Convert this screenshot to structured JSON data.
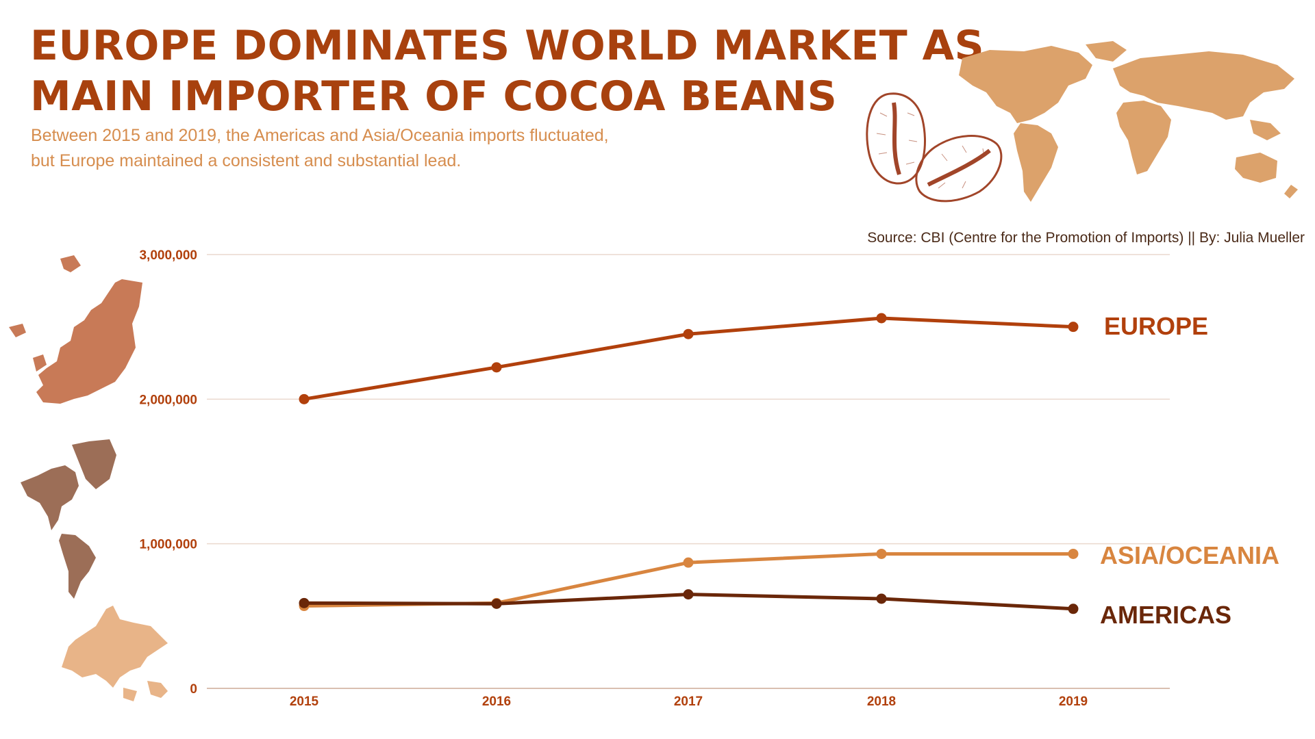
{
  "header": {
    "title_line1": "EUROPE DOMINATES WORLD MARKET AS",
    "title_line2": "MAIN IMPORTER OF COCOA BEANS",
    "subtitle": "Between 2015 and 2019, the Americas and Asia/Oceania imports fluctuated, but Europe maintained a consistent and substantial lead.",
    "source": "Source: CBI (Centre for the Promotion of Imports) || By: Julia Mueller"
  },
  "colors": {
    "title": "#a8410e",
    "subtitle": "#d68d4e",
    "europe": "#b1400c",
    "asia_oceania": "#d8853f",
    "americas": "#6a2709",
    "grid": "#ead9ce",
    "map": "#dca26b",
    "map_europe": "#c87a57",
    "map_americas": "#9c6e57",
    "map_asia": "#e8b488",
    "bean": "#a14529"
  },
  "decor": {
    "world_map": "world-map-icon",
    "cocoa_beans": "cocoa-beans-icon",
    "europe_map": "europe-map-icon",
    "americas_map": "americas-map-icon",
    "asia_map": "asia-map-icon"
  },
  "chart_data": {
    "type": "line",
    "x": [
      "2015",
      "2016",
      "2017",
      "2018",
      "2019"
    ],
    "y_ticks": [
      "0",
      "1,000,000",
      "2,000,000",
      "3,000,000"
    ],
    "ylim": [
      0,
      3000000
    ],
    "grid": true,
    "legend": "direct labels at line ends",
    "series": [
      {
        "name": "EUROPE",
        "key": "europe",
        "values": [
          2000000,
          2220000,
          2450000,
          2560000,
          2500000
        ]
      },
      {
        "name": "ASIA/OCEANIA",
        "key": "asia_oceania",
        "values": [
          570000,
          590000,
          870000,
          930000,
          930000
        ]
      },
      {
        "name": "AMERICAS",
        "key": "americas",
        "values": [
          590000,
          585000,
          650000,
          620000,
          550000
        ]
      }
    ]
  }
}
